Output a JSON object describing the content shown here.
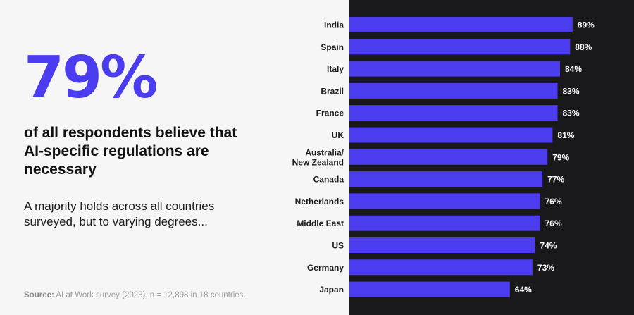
{
  "colors": {
    "accent": "#4b3cf0",
    "bar": "#4b3cf0",
    "left_bg": "#f6f6f7",
    "right_bg": "#19191c"
  },
  "headline": {
    "stat": "79%",
    "text": "of all respondents believe that AI-specific regulations are necessary"
  },
  "subtext": "A majority holds across all countries surveyed, but to varying degrees...",
  "source": {
    "label": "Source:",
    "text": "AI at Work survey (2023), n = 12,898 in 18 countries."
  },
  "chart_data": {
    "type": "bar",
    "orientation": "horizontal",
    "categories": [
      [
        "India"
      ],
      [
        "Spain"
      ],
      [
        "Italy"
      ],
      [
        "Brazil"
      ],
      [
        "France"
      ],
      [
        "UK"
      ],
      [
        "Australia/",
        "New Zealand"
      ],
      [
        "Canada"
      ],
      [
        "Netherlands"
      ],
      [
        "Middle East"
      ],
      [
        "US"
      ],
      [
        "Germany"
      ],
      [
        "Japan"
      ]
    ],
    "values": [
      89,
      88,
      84,
      83,
      83,
      81,
      79,
      77,
      76,
      76,
      74,
      73,
      64
    ],
    "value_labels": [
      "89%",
      "88%",
      "84%",
      "83%",
      "83%",
      "81%",
      "79%",
      "77%",
      "76%",
      "76%",
      "74%",
      "73%",
      "64%"
    ],
    "unit": "%",
    "xlim": [
      0,
      100
    ],
    "grid": false,
    "legend": "none"
  }
}
